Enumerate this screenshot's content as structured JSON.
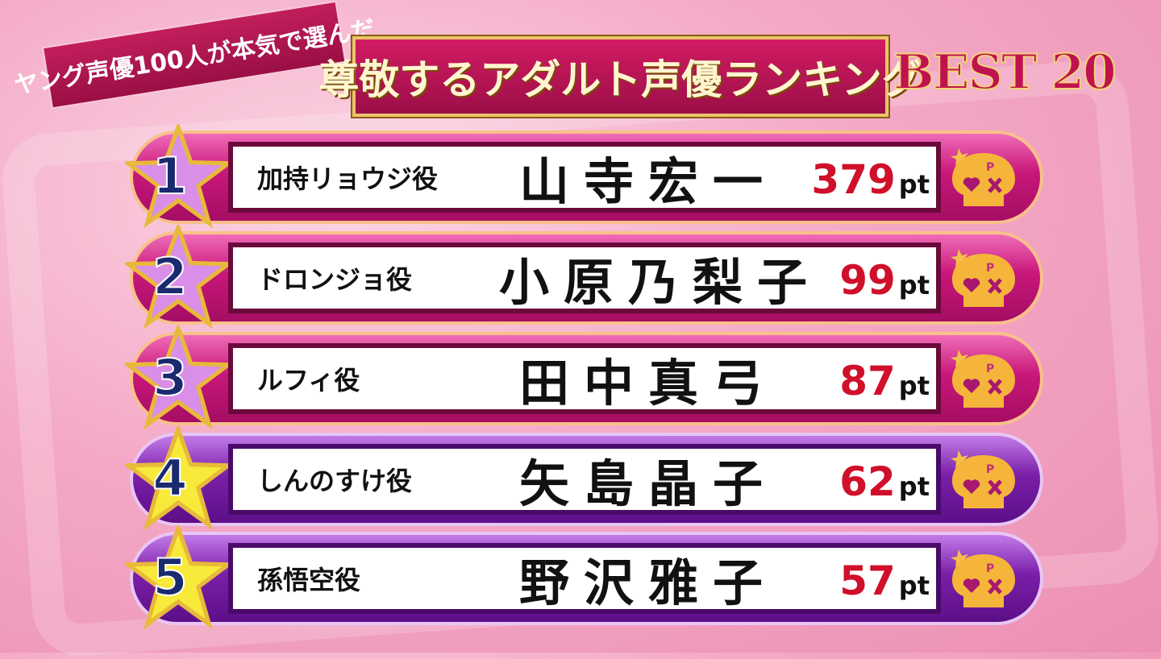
{
  "header": {
    "subtitle": "ヤング声優100人が本気で選んだ",
    "title": "尊敬するアダルト声優ランキング",
    "badge": "BEST 20"
  },
  "colors": {
    "pink_row": "#c8177a",
    "purple_row": "#7a1fa8",
    "points": "#d0102a",
    "rank_number": "#1a2a6e"
  },
  "skull_logo_letter": "P",
  "unit": "pt",
  "rankings": [
    {
      "rank": "1",
      "role": "加持リョウジ役",
      "name": "山寺宏一",
      "points": "379",
      "theme": "pink"
    },
    {
      "rank": "2",
      "role": "ドロンジョ役",
      "name": "小原乃梨子",
      "points": "99",
      "theme": "pink"
    },
    {
      "rank": "3",
      "role": "ルフィ役",
      "name": "田中真弓",
      "points": "87",
      "theme": "pink"
    },
    {
      "rank": "4",
      "role": "しんのすけ役",
      "name": "矢島晶子",
      "points": "62",
      "theme": "purple"
    },
    {
      "rank": "5",
      "role": "孫悟空役",
      "name": "野沢雅子",
      "points": "57",
      "theme": "purple"
    }
  ]
}
